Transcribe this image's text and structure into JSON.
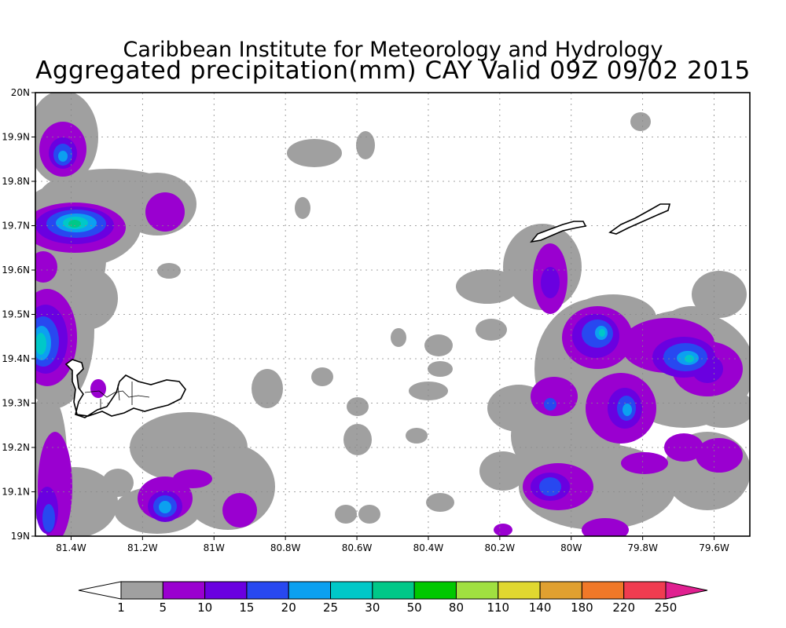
{
  "title": {
    "line1": "Caribbean Institute for Meteorology and Hydrology",
    "line2": "Aggregated precipitation(mm) CAY Valid 09Z 09/02 2015"
  },
  "map": {
    "lat_labels": [
      "20N",
      "19.9N",
      "19.8N",
      "19.7N",
      "19.6N",
      "19.5N",
      "19.4N",
      "19.3N",
      "19.2N",
      "19.1N",
      "19N"
    ],
    "lon_labels": [
      "81.4W",
      "81.2W",
      "81W",
      "80.8W",
      "80.6W",
      "80.4W",
      "80.2W",
      "80W",
      "79.8W",
      "79.6W"
    ],
    "lat_range": [
      19.0,
      20.0
    ],
    "lon_range": [
      -81.5,
      -79.5
    ],
    "grid": "dotted",
    "islands": [
      "grand-cayman",
      "little-cayman",
      "cayman-brac"
    ]
  },
  "colorbar": {
    "labels": [
      "1",
      "5",
      "10",
      "15",
      "20",
      "25",
      "30",
      "50",
      "80",
      "110",
      "140",
      "180",
      "220",
      "250"
    ],
    "colors": [
      "#a0a0a0",
      "#9a00d0",
      "#6a00e0",
      "#2848f0",
      "#0ca0f0",
      "#00c8c8",
      "#00c888",
      "#00c800",
      "#a0e040",
      "#e0d830",
      "#e0a030",
      "#f07828",
      "#f03c50",
      "#e02090"
    ],
    "under_color": "#ffffff",
    "over_color": "#e02090"
  }
}
